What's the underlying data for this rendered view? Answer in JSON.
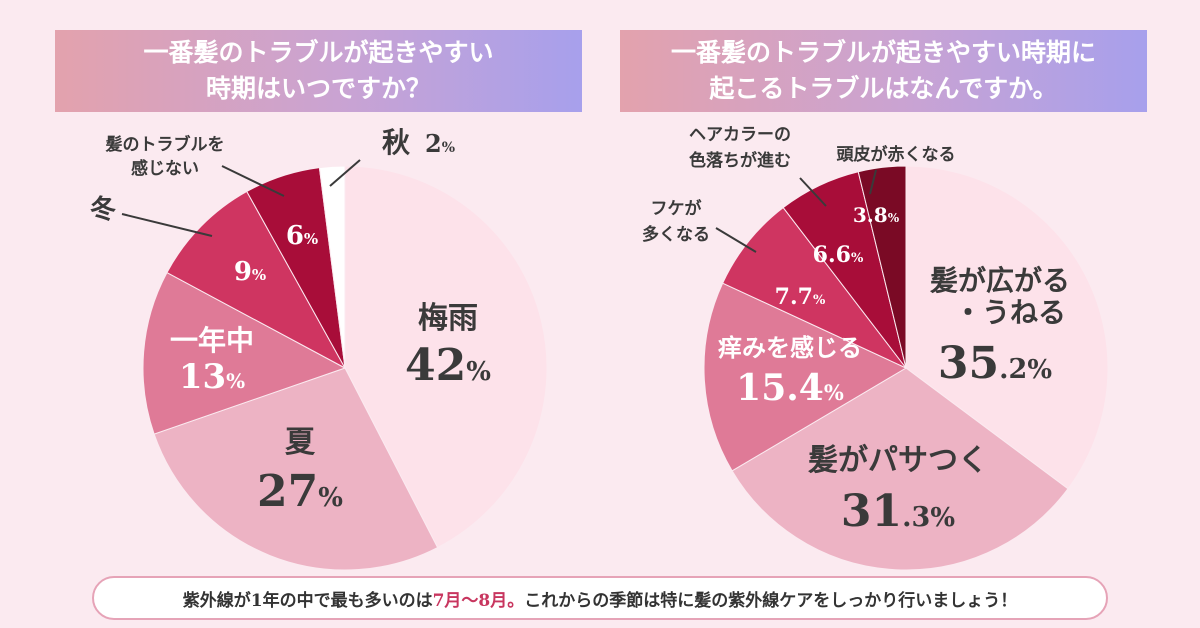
{
  "left_title": {
    "line1": "一番髪のトラブルが起きやすい",
    "line2": "時期はいつですか？"
  },
  "right_title": {
    "line1": "一番髪のトラブルが起きやすい時期に",
    "line2": "起こるトラブルはなんですか。"
  },
  "footer": {
    "pre": "紫外線が1年の中で最も多いのは",
    "highlight": "7月～8月。",
    "post": "これからの季節は特に髪の紫外線ケアをしっかり行いましょう！"
  },
  "colors": {
    "background": "#fbeaf0",
    "accent": "#c8365f",
    "text_dark": "#3a3a3a"
  },
  "chart_data": [
    {
      "type": "pie",
      "title": "一番髪のトラブルが起きやすい時期はいつですか？",
      "unit": "%",
      "start": "top, clockwise",
      "slices": [
        {
          "label": "梅雨",
          "value": 42,
          "value_text": "42",
          "color": "#fde2ea",
          "text_color": "#3a3a3a",
          "inside": true
        },
        {
          "label": "夏",
          "value": 27,
          "value_text": "27",
          "color": "#edb3c4",
          "text_color": "#3a3a3a",
          "inside": true
        },
        {
          "label": "一年中",
          "value": 13,
          "value_text": "13",
          "color": "#df7a97",
          "text_color": "#ffffff",
          "inside": true
        },
        {
          "label": "冬",
          "value": 9,
          "value_text": "9",
          "color": "#cf3561",
          "text_color": "#ffffff",
          "inside": false
        },
        {
          "label": "髪のトラブルを感じない",
          "label_lines": [
            "髪のトラブルを",
            "感じない"
          ],
          "value": 6,
          "value_text": "6",
          "color": "#a80d39",
          "text_color": "#ffffff",
          "inside": false
        },
        {
          "label": "秋",
          "value": 2,
          "value_text": "2",
          "color": "#ffffff",
          "text_color": "#3a3a3a",
          "inside": false
        }
      ]
    },
    {
      "type": "pie",
      "title": "一番髪のトラブルが起きやすい時期に起こるトラブルはなんですか。",
      "unit": "%",
      "start": "top, clockwise",
      "slices": [
        {
          "label": "髪が広がる・うねる",
          "label_lines": [
            "髪が広がる",
            "・うねる"
          ],
          "value": 35.2,
          "value_main": "35",
          "value_dec": ".2",
          "color": "#fde2ea",
          "text_color": "#3a3a3a",
          "inside": true
        },
        {
          "label": "髪がパサつく",
          "value": 31.3,
          "value_main": "31",
          "value_dec": ".3",
          "color": "#edb3c4",
          "text_color": "#3a3a3a",
          "inside": true
        },
        {
          "label": "痒みを感じる",
          "value": 15.4,
          "value_main": "15.4",
          "value_dec": "",
          "color": "#df7a97",
          "text_color": "#ffffff",
          "inside": true
        },
        {
          "label": "フケが多くなる",
          "label_lines": [
            "フケが",
            "多くなる"
          ],
          "value": 7.7,
          "value_main": "7.7",
          "value_dec": "",
          "color": "#cf3561",
          "text_color": "#ffffff",
          "inside": false
        },
        {
          "label": "ヘアカラーの色落ちが進む",
          "label_lines": [
            "ヘアカラーの",
            "色落ちが進む"
          ],
          "value": 6.6,
          "value_main": "6.6",
          "value_dec": "",
          "color": "#a80d39",
          "text_color": "#ffffff",
          "inside": false
        },
        {
          "label": "頭皮が赤くなる",
          "value": 3.8,
          "value_main": "3.8",
          "value_dec": "",
          "color": "#7a0a25",
          "text_color": "#ffffff",
          "inside": false
        }
      ]
    }
  ]
}
